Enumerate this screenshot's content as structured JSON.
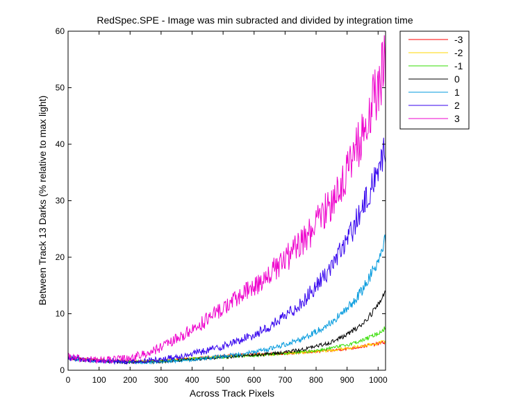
{
  "chart_data": {
    "type": "line",
    "title": "RedSpec.SPE - Image was min subracted and divided by integration time",
    "xlabel": "Across Track Pixels",
    "ylabel": "Between Track 13 Darks (% relative to max light)",
    "xlim": [
      0,
      1024
    ],
    "ylim": [
      0,
      60
    ],
    "xticks": [
      0,
      100,
      200,
      300,
      400,
      500,
      600,
      700,
      800,
      900,
      1000
    ],
    "yticks": [
      0,
      10,
      20,
      30,
      40,
      50,
      60
    ],
    "grid": false,
    "legend_position": "outside-top-right",
    "series": [
      {
        "name": "-3",
        "color": "#ff0000",
        "noise": 0.35,
        "x": [
          0,
          50,
          100,
          150,
          200,
          250,
          300,
          350,
          400,
          450,
          500,
          550,
          600,
          650,
          700,
          750,
          800,
          850,
          900,
          950,
          1000,
          1024
        ],
        "values": [
          2.3,
          2.0,
          1.8,
          1.7,
          1.6,
          1.6,
          1.7,
          1.9,
          2.1,
          2.3,
          2.5,
          2.7,
          2.8,
          2.9,
          3.0,
          3.1,
          3.3,
          3.5,
          3.8,
          4.2,
          4.7,
          5.0
        ]
      },
      {
        "name": "-2",
        "color": "#ffd700",
        "noise": 0.35,
        "x": [
          0,
          50,
          100,
          150,
          200,
          250,
          300,
          350,
          400,
          450,
          500,
          550,
          600,
          650,
          700,
          750,
          800,
          850,
          900,
          950,
          1000,
          1024
        ],
        "values": [
          2.3,
          2.0,
          1.8,
          1.7,
          1.6,
          1.6,
          1.7,
          1.9,
          2.1,
          2.3,
          2.4,
          2.6,
          2.7,
          2.8,
          3.0,
          3.1,
          3.3,
          3.5,
          3.9,
          4.3,
          4.8,
          5.2
        ]
      },
      {
        "name": "-1",
        "color": "#33dd00",
        "noise": 0.4,
        "x": [
          0,
          50,
          100,
          150,
          200,
          250,
          300,
          350,
          400,
          450,
          500,
          550,
          600,
          650,
          700,
          750,
          800,
          850,
          900,
          950,
          1000,
          1024
        ],
        "values": [
          2.2,
          1.9,
          1.7,
          1.6,
          1.5,
          1.5,
          1.6,
          1.8,
          2.0,
          2.2,
          2.3,
          2.5,
          2.6,
          2.8,
          3.0,
          3.2,
          3.5,
          3.9,
          4.5,
          5.3,
          6.5,
          7.5
        ]
      },
      {
        "name": "0",
        "color": "#000000",
        "noise": 0.45,
        "x": [
          0,
          50,
          100,
          150,
          200,
          250,
          300,
          350,
          400,
          450,
          500,
          550,
          600,
          650,
          700,
          750,
          800,
          850,
          900,
          950,
          1000,
          1024
        ],
        "values": [
          2.1,
          1.8,
          1.6,
          1.5,
          1.4,
          1.4,
          1.5,
          1.7,
          1.9,
          2.1,
          2.3,
          2.5,
          2.7,
          2.9,
          3.2,
          3.6,
          4.2,
          5.0,
          6.3,
          8.2,
          11.5,
          14.0
        ]
      },
      {
        "name": "1",
        "color": "#0099dd",
        "noise": 0.6,
        "x": [
          0,
          50,
          100,
          150,
          200,
          250,
          300,
          350,
          400,
          450,
          500,
          550,
          600,
          650,
          700,
          750,
          800,
          850,
          900,
          950,
          1000,
          1024
        ],
        "values": [
          2.1,
          1.8,
          1.6,
          1.5,
          1.4,
          1.4,
          1.5,
          1.7,
          1.9,
          2.2,
          2.5,
          2.8,
          3.2,
          3.8,
          4.6,
          5.5,
          6.8,
          8.5,
          10.8,
          14.2,
          19.5,
          23.0
        ]
      },
      {
        "name": "2",
        "color": "#3300ee",
        "noise": 0.9,
        "x": [
          0,
          50,
          100,
          150,
          200,
          250,
          300,
          350,
          400,
          450,
          500,
          550,
          600,
          650,
          700,
          750,
          800,
          850,
          900,
          950,
          1000,
          1024
        ],
        "values": [
          2.2,
          1.9,
          1.7,
          1.6,
          1.6,
          1.7,
          2.0,
          2.4,
          2.9,
          3.5,
          4.3,
          5.2,
          6.3,
          7.7,
          9.5,
          11.8,
          14.8,
          18.5,
          23.0,
          28.5,
          35.5,
          39.0
        ]
      },
      {
        "name": "3",
        "color": "#ee00cc",
        "noise": 1.2,
        "x": [
          0,
          50,
          100,
          150,
          200,
          250,
          300,
          350,
          400,
          450,
          500,
          550,
          600,
          650,
          700,
          750,
          800,
          850,
          900,
          950,
          1000,
          1024
        ],
        "values": [
          2.3,
          2.0,
          1.8,
          1.9,
          2.2,
          2.9,
          4.0,
          5.5,
          7.2,
          9.0,
          11.0,
          12.9,
          14.8,
          17.0,
          19.5,
          22.4,
          25.8,
          30.0,
          35.0,
          41.5,
          50.0,
          55.0
        ]
      }
    ]
  }
}
